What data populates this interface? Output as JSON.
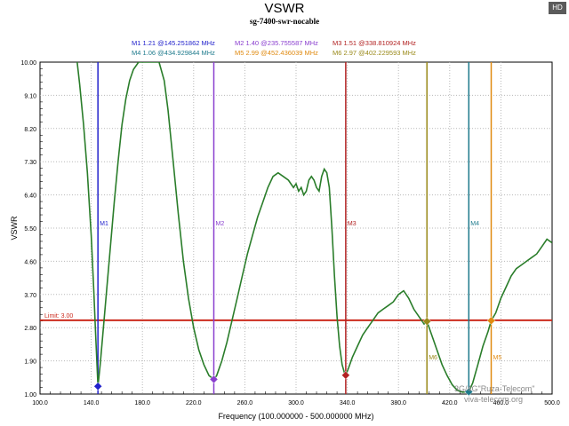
{
  "header": {
    "title": "VSWR",
    "subtitle": "sg-7400-swr-nocable",
    "hd_badge": "HD"
  },
  "watermark": {
    "line1": "3G/4G\"Ruza-Telecom\"",
    "line2": "viva-telecom.org"
  },
  "chart_data": {
    "type": "line",
    "title": "VSWR",
    "subtitle": "sg-7400-swr-nocable",
    "xlabel": "Frequency (100.000000 - 500.000000 MHz)",
    "ylabel": "VSWR",
    "xlim": [
      100,
      500
    ],
    "ylim": [
      1,
      10
    ],
    "xticks": [
      100,
      140,
      180,
      220,
      260,
      300,
      340,
      380,
      420,
      460,
      500
    ],
    "xtick_labels": [
      "100.0",
      "140.0",
      "180.0",
      "220.0",
      "260.0",
      "300.0",
      "340.0",
      "380.0",
      "420.0",
      "460.0",
      "500.0"
    ],
    "yticks": [
      1,
      1.9,
      2.8,
      3.7,
      4.6,
      5.5,
      6.4,
      7.3,
      8.2,
      9.1,
      10
    ],
    "ytick_labels": [
      "1.00",
      "1.90",
      "2.80",
      "3.70",
      "4.60",
      "5.50",
      "6.40",
      "7.30",
      "8.20",
      "9.10",
      "10.00"
    ],
    "grid": true,
    "series": [
      {
        "name": "VSWR",
        "color": "#2a7d2a",
        "x": [
          129,
          131,
          134,
          137,
          140,
          142,
          143.5,
          145.3,
          147,
          149,
          152,
          155,
          158,
          161,
          164,
          167,
          170,
          173,
          177,
          185,
          193,
          197,
          200,
          204,
          208,
          212,
          216,
          220,
          224,
          228,
          232,
          235.8,
          238,
          242,
          246,
          250,
          254,
          258,
          262,
          266,
          270,
          274,
          278,
          282,
          286,
          290,
          294,
          298,
          300,
          302,
          304,
          306,
          308,
          310,
          312,
          314,
          316,
          318,
          320,
          322,
          324,
          326,
          328,
          330,
          332,
          334,
          336,
          338,
          338.8,
          341,
          344,
          348,
          352,
          356,
          360,
          364,
          368,
          372,
          376,
          380,
          384,
          388,
          392,
          396,
          400,
          402.2,
          406,
          410,
          414,
          418,
          422,
          426,
          430,
          433,
          434.9,
          438,
          442,
          446,
          450,
          452.4,
          456,
          460,
          464,
          468,
          472,
          476,
          480,
          484,
          488,
          492,
          496,
          500
        ],
        "y": [
          10,
          9.4,
          8.3,
          7.0,
          5.3,
          3.8,
          2.6,
          1.21,
          1.8,
          2.6,
          3.8,
          5.0,
          6.2,
          7.3,
          8.3,
          9.0,
          9.5,
          9.8,
          10,
          10,
          10,
          9.5,
          8.7,
          7.3,
          5.9,
          4.6,
          3.6,
          2.8,
          2.2,
          1.8,
          1.5,
          1.4,
          1.5,
          1.9,
          2.4,
          3.0,
          3.6,
          4.2,
          4.8,
          5.3,
          5.8,
          6.2,
          6.6,
          6.9,
          7.0,
          6.9,
          6.8,
          6.6,
          6.7,
          6.5,
          6.6,
          6.4,
          6.5,
          6.8,
          6.9,
          6.8,
          6.6,
          6.5,
          6.9,
          7.1,
          7.0,
          6.6,
          5.5,
          4.2,
          3.1,
          2.3,
          1.8,
          1.55,
          1.51,
          1.7,
          2.0,
          2.3,
          2.6,
          2.8,
          3.0,
          3.2,
          3.3,
          3.4,
          3.5,
          3.7,
          3.8,
          3.6,
          3.3,
          3.1,
          2.9,
          2.97,
          2.6,
          2.2,
          1.8,
          1.5,
          1.25,
          1.1,
          1.05,
          1.06,
          1.06,
          1.3,
          1.8,
          2.3,
          2.7,
          2.99,
          3.2,
          3.6,
          3.9,
          4.2,
          4.4,
          4.5,
          4.6,
          4.7,
          4.8,
          5.0,
          5.2,
          5.1
        ]
      }
    ],
    "limit_line": {
      "label": "Limit: 3.00",
      "value": 3.0,
      "color": "#cc2b1e"
    },
    "markers": [
      {
        "name": "M1",
        "freq": 145.251862,
        "vswr": 1.21,
        "legend": "M1  1.21 @145.251862 MHz",
        "color": "#2222cc",
        "label_pos": "top"
      },
      {
        "name": "M2",
        "freq": 235.755587,
        "vswr": 1.4,
        "legend": "M2  1.40 @235.755587 MHz",
        "color": "#8a3fcf",
        "label_pos": "top"
      },
      {
        "name": "M3",
        "freq": 338.810924,
        "vswr": 1.51,
        "legend": "M3  1.51 @338.810924 MHz",
        "color": "#b22222",
        "label_pos": "top"
      },
      {
        "name": "M4",
        "freq": 434.929844,
        "vswr": 1.06,
        "legend": "M4  1.06 @434.929844 MHz",
        "color": "#1e7a8c",
        "label_pos": "top"
      },
      {
        "name": "M5",
        "freq": 452.436039,
        "vswr": 2.99,
        "legend": "M5  2.99 @452.436039 MHz",
        "color": "#e08a10",
        "label_pos": "bottom"
      },
      {
        "name": "M6",
        "freq": 402.229593,
        "vswr": 2.97,
        "legend": "M6  2.97 @402.229593 MHz",
        "color": "#9a8a1a",
        "label_pos": "bottom"
      }
    ]
  }
}
